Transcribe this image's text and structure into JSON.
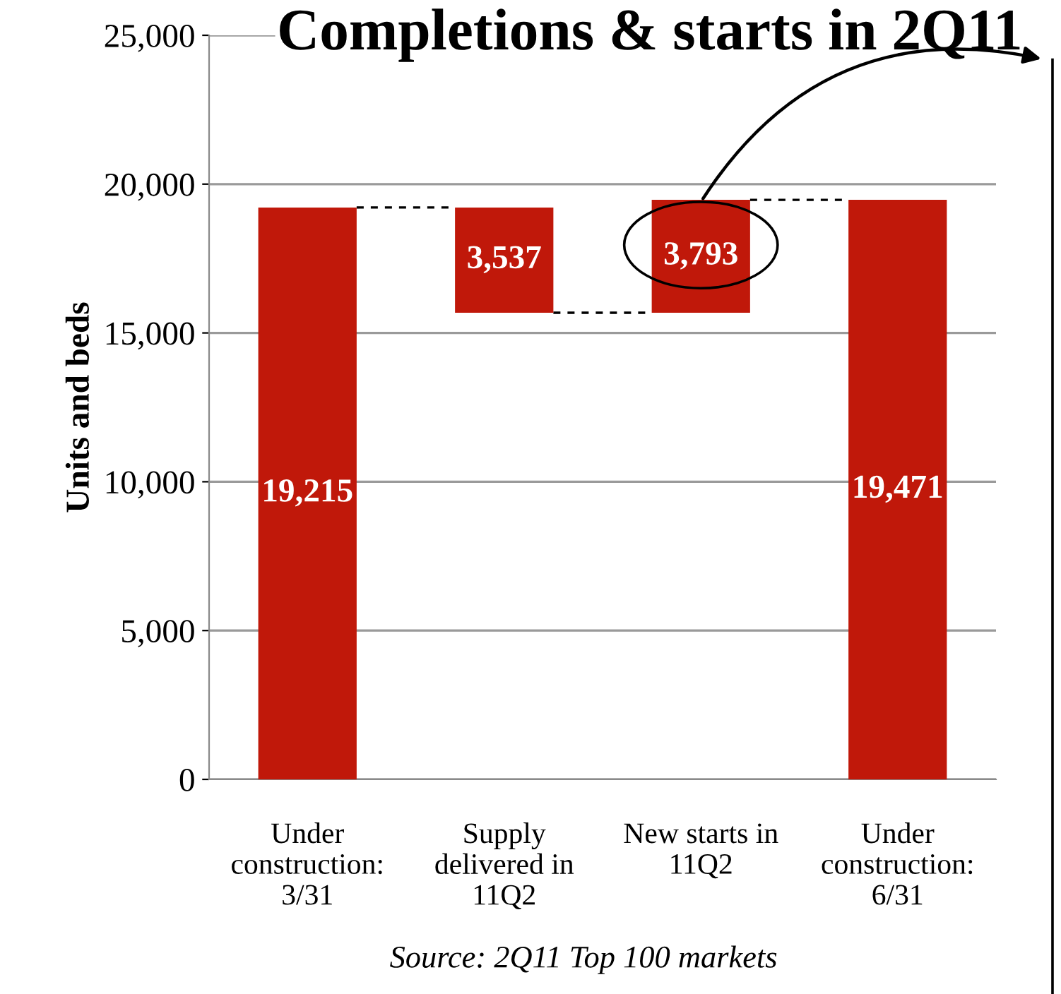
{
  "chart_data": {
    "type": "bar",
    "title": "Completions & starts in 2Q11",
    "ylabel": "Units and beds",
    "categories": [
      "Under\nconstruction:\n3/31",
      "Supply\ndelivered in\n11Q2",
      "New starts in\n11Q2",
      "Under\nconstruction:\n6/31"
    ],
    "values": [
      19215,
      3537,
      3793,
      19471
    ],
    "base": [
      0,
      15678,
      15678,
      0
    ],
    "color": "#c0180a",
    "ylim": [
      0,
      25000
    ],
    "yticks": [
      {
        "value": 0,
        "label": "0"
      },
      {
        "value": 5000,
        "label": "5,000"
      },
      {
        "value": 10000,
        "label": "10,000"
      },
      {
        "value": 15000,
        "label": "15,000"
      },
      {
        "value": 20000,
        "label": "20,000"
      },
      {
        "value": 25000,
        "label": "25,000"
      }
    ],
    "value_labels": [
      "19,215",
      "3,537",
      "3,793",
      "19,471"
    ],
    "grid": "y",
    "annotations": [
      "Source: 2Q11 Top 100 markets"
    ]
  }
}
